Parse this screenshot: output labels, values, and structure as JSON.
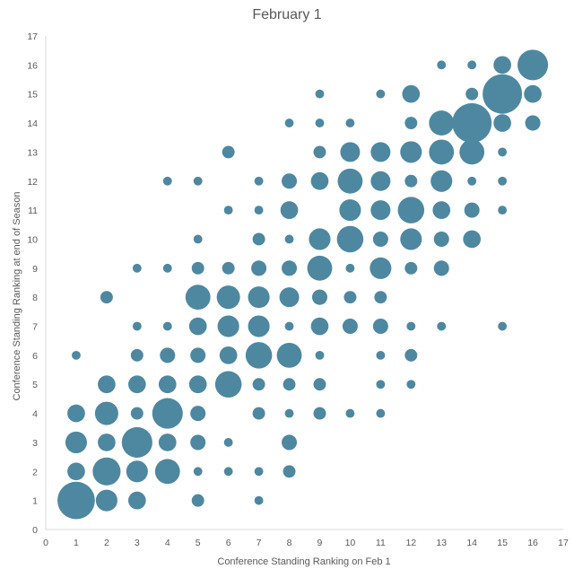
{
  "chart_data": {
    "type": "scatter",
    "subtype": "bubble",
    "title": "February 1",
    "xlabel": "Conference Standing Ranking on Feb 1",
    "ylabel": "Conference Standing Ranking at end of Season",
    "xlim": [
      0,
      17
    ],
    "ylim": [
      0,
      17
    ],
    "xticks": [
      "0",
      "1",
      "2",
      "3",
      "4",
      "5",
      "6",
      "7",
      "8",
      "9",
      "10",
      "11",
      "12",
      "13",
      "14",
      "15",
      "16",
      "17"
    ],
    "yticks": [
      "0",
      "1",
      "2",
      "3",
      "4",
      "5",
      "6",
      "7",
      "8",
      "9",
      "10",
      "11",
      "12",
      "13",
      "14",
      "15",
      "16",
      "17"
    ],
    "grid": false,
    "legend": "none",
    "bubble_color": "#4E87A0",
    "points": [
      {
        "x": 1,
        "y": 1,
        "size": 9
      },
      {
        "x": 2,
        "y": 1,
        "size": 3
      },
      {
        "x": 3,
        "y": 1,
        "size": 2
      },
      {
        "x": 5,
        "y": 1,
        "size": 1
      },
      {
        "x": 7,
        "y": 1,
        "size": 0.5
      },
      {
        "x": 1,
        "y": 2,
        "size": 2
      },
      {
        "x": 2,
        "y": 2,
        "size": 5
      },
      {
        "x": 3,
        "y": 2,
        "size": 3
      },
      {
        "x": 4,
        "y": 2,
        "size": 4
      },
      {
        "x": 5,
        "y": 2,
        "size": 0.5
      },
      {
        "x": 6,
        "y": 2,
        "size": 0.5
      },
      {
        "x": 7,
        "y": 2,
        "size": 0.5
      },
      {
        "x": 8,
        "y": 2,
        "size": 1
      },
      {
        "x": 1,
        "y": 3,
        "size": 3
      },
      {
        "x": 2,
        "y": 3,
        "size": 2
      },
      {
        "x": 3,
        "y": 3,
        "size": 6
      },
      {
        "x": 4,
        "y": 3,
        "size": 2
      },
      {
        "x": 5,
        "y": 3,
        "size": 1.5
      },
      {
        "x": 6,
        "y": 3,
        "size": 0.5
      },
      {
        "x": 8,
        "y": 3,
        "size": 1.5
      },
      {
        "x": 1,
        "y": 4,
        "size": 2
      },
      {
        "x": 2,
        "y": 4,
        "size": 3.5
      },
      {
        "x": 3,
        "y": 4,
        "size": 1
      },
      {
        "x": 4,
        "y": 4,
        "size": 6
      },
      {
        "x": 5,
        "y": 4,
        "size": 1.5
      },
      {
        "x": 7,
        "y": 4,
        "size": 1
      },
      {
        "x": 8,
        "y": 4,
        "size": 0.5
      },
      {
        "x": 9,
        "y": 4,
        "size": 1
      },
      {
        "x": 10,
        "y": 4,
        "size": 0.5
      },
      {
        "x": 11,
        "y": 4,
        "size": 0.5
      },
      {
        "x": 2,
        "y": 5,
        "size": 2
      },
      {
        "x": 3,
        "y": 5,
        "size": 2
      },
      {
        "x": 4,
        "y": 5,
        "size": 2
      },
      {
        "x": 5,
        "y": 5,
        "size": 2
      },
      {
        "x": 6,
        "y": 5,
        "size": 4.5
      },
      {
        "x": 7,
        "y": 5,
        "size": 1
      },
      {
        "x": 8,
        "y": 5,
        "size": 1
      },
      {
        "x": 9,
        "y": 5,
        "size": 1
      },
      {
        "x": 11,
        "y": 5,
        "size": 0.5
      },
      {
        "x": 12,
        "y": 5,
        "size": 0.5
      },
      {
        "x": 1,
        "y": 6,
        "size": 0.5
      },
      {
        "x": 3,
        "y": 6,
        "size": 1
      },
      {
        "x": 4,
        "y": 6,
        "size": 1.5
      },
      {
        "x": 5,
        "y": 6,
        "size": 1.5
      },
      {
        "x": 6,
        "y": 6,
        "size": 2
      },
      {
        "x": 7,
        "y": 6,
        "size": 4.5
      },
      {
        "x": 8,
        "y": 6,
        "size": 4
      },
      {
        "x": 9,
        "y": 6,
        "size": 0.5
      },
      {
        "x": 11,
        "y": 6,
        "size": 0.5
      },
      {
        "x": 12,
        "y": 6,
        "size": 1
      },
      {
        "x": 3,
        "y": 7,
        "size": 0.5
      },
      {
        "x": 4,
        "y": 7,
        "size": 0.5
      },
      {
        "x": 5,
        "y": 7,
        "size": 2
      },
      {
        "x": 6,
        "y": 7,
        "size": 3
      },
      {
        "x": 7,
        "y": 7,
        "size": 3
      },
      {
        "x": 8,
        "y": 7,
        "size": 0.5
      },
      {
        "x": 9,
        "y": 7,
        "size": 2
      },
      {
        "x": 10,
        "y": 7,
        "size": 1.5
      },
      {
        "x": 11,
        "y": 7,
        "size": 1.5
      },
      {
        "x": 12,
        "y": 7,
        "size": 0.5
      },
      {
        "x": 13,
        "y": 7,
        "size": 0.5
      },
      {
        "x": 15,
        "y": 7,
        "size": 0.5
      },
      {
        "x": 2,
        "y": 8,
        "size": 1
      },
      {
        "x": 5,
        "y": 8,
        "size": 4
      },
      {
        "x": 6,
        "y": 8,
        "size": 3.5
      },
      {
        "x": 7,
        "y": 8,
        "size": 3
      },
      {
        "x": 8,
        "y": 8,
        "size": 2.5
      },
      {
        "x": 9,
        "y": 8,
        "size": 1.5
      },
      {
        "x": 10,
        "y": 8,
        "size": 1
      },
      {
        "x": 11,
        "y": 8,
        "size": 1
      },
      {
        "x": 3,
        "y": 9,
        "size": 0.5
      },
      {
        "x": 4,
        "y": 9,
        "size": 0.5
      },
      {
        "x": 5,
        "y": 9,
        "size": 1
      },
      {
        "x": 6,
        "y": 9,
        "size": 1
      },
      {
        "x": 7,
        "y": 9,
        "size": 1.5
      },
      {
        "x": 8,
        "y": 9,
        "size": 1.5
      },
      {
        "x": 9,
        "y": 9,
        "size": 4
      },
      {
        "x": 10,
        "y": 9,
        "size": 0.5
      },
      {
        "x": 11,
        "y": 9,
        "size": 3
      },
      {
        "x": 12,
        "y": 9,
        "size": 1
      },
      {
        "x": 13,
        "y": 9,
        "size": 1.5
      },
      {
        "x": 5,
        "y": 10,
        "size": 0.5
      },
      {
        "x": 7,
        "y": 10,
        "size": 1
      },
      {
        "x": 8,
        "y": 10,
        "size": 0.5
      },
      {
        "x": 9,
        "y": 10,
        "size": 3
      },
      {
        "x": 10,
        "y": 10,
        "size": 4.5
      },
      {
        "x": 11,
        "y": 10,
        "size": 1.5
      },
      {
        "x": 12,
        "y": 10,
        "size": 3
      },
      {
        "x": 13,
        "y": 10,
        "size": 1.5
      },
      {
        "x": 14,
        "y": 10,
        "size": 2
      },
      {
        "x": 6,
        "y": 11,
        "size": 0.5
      },
      {
        "x": 7,
        "y": 11,
        "size": 0.5
      },
      {
        "x": 8,
        "y": 11,
        "size": 2
      },
      {
        "x": 10,
        "y": 11,
        "size": 3
      },
      {
        "x": 11,
        "y": 11,
        "size": 2.5
      },
      {
        "x": 12,
        "y": 11,
        "size": 4.5
      },
      {
        "x": 13,
        "y": 11,
        "size": 2
      },
      {
        "x": 14,
        "y": 11,
        "size": 1.5
      },
      {
        "x": 15,
        "y": 11,
        "size": 0.5
      },
      {
        "x": 4,
        "y": 12,
        "size": 0.5
      },
      {
        "x": 5,
        "y": 12,
        "size": 0.5
      },
      {
        "x": 7,
        "y": 12,
        "size": 0.5
      },
      {
        "x": 8,
        "y": 12,
        "size": 1.5
      },
      {
        "x": 9,
        "y": 12,
        "size": 2
      },
      {
        "x": 10,
        "y": 12,
        "size": 4
      },
      {
        "x": 11,
        "y": 12,
        "size": 2.5
      },
      {
        "x": 12,
        "y": 12,
        "size": 1
      },
      {
        "x": 13,
        "y": 12,
        "size": 3
      },
      {
        "x": 14,
        "y": 12,
        "size": 0.5
      },
      {
        "x": 15,
        "y": 12,
        "size": 0.5
      },
      {
        "x": 6,
        "y": 13,
        "size": 1
      },
      {
        "x": 9,
        "y": 13,
        "size": 1
      },
      {
        "x": 10,
        "y": 13,
        "size": 2.5
      },
      {
        "x": 11,
        "y": 13,
        "size": 2.5
      },
      {
        "x": 12,
        "y": 13,
        "size": 3
      },
      {
        "x": 13,
        "y": 13,
        "size": 4
      },
      {
        "x": 14,
        "y": 13,
        "size": 4
      },
      {
        "x": 15,
        "y": 13,
        "size": 0.5
      },
      {
        "x": 8,
        "y": 14,
        "size": 0.5
      },
      {
        "x": 9,
        "y": 14,
        "size": 0.5
      },
      {
        "x": 10,
        "y": 14,
        "size": 0.5
      },
      {
        "x": 12,
        "y": 14,
        "size": 1
      },
      {
        "x": 13,
        "y": 14,
        "size": 4
      },
      {
        "x": 14,
        "y": 14,
        "size": 10
      },
      {
        "x": 15,
        "y": 14,
        "size": 2
      },
      {
        "x": 16,
        "y": 14,
        "size": 1.5
      },
      {
        "x": 9,
        "y": 15,
        "size": 0.5
      },
      {
        "x": 11,
        "y": 15,
        "size": 0.5
      },
      {
        "x": 12,
        "y": 15,
        "size": 2
      },
      {
        "x": 14,
        "y": 15,
        "size": 1
      },
      {
        "x": 15,
        "y": 15,
        "size": 10
      },
      {
        "x": 16,
        "y": 15,
        "size": 2
      },
      {
        "x": 13,
        "y": 16,
        "size": 0.5
      },
      {
        "x": 14,
        "y": 16,
        "size": 0.5
      },
      {
        "x": 15,
        "y": 16,
        "size": 2
      },
      {
        "x": 16,
        "y": 16,
        "size": 6
      }
    ]
  }
}
